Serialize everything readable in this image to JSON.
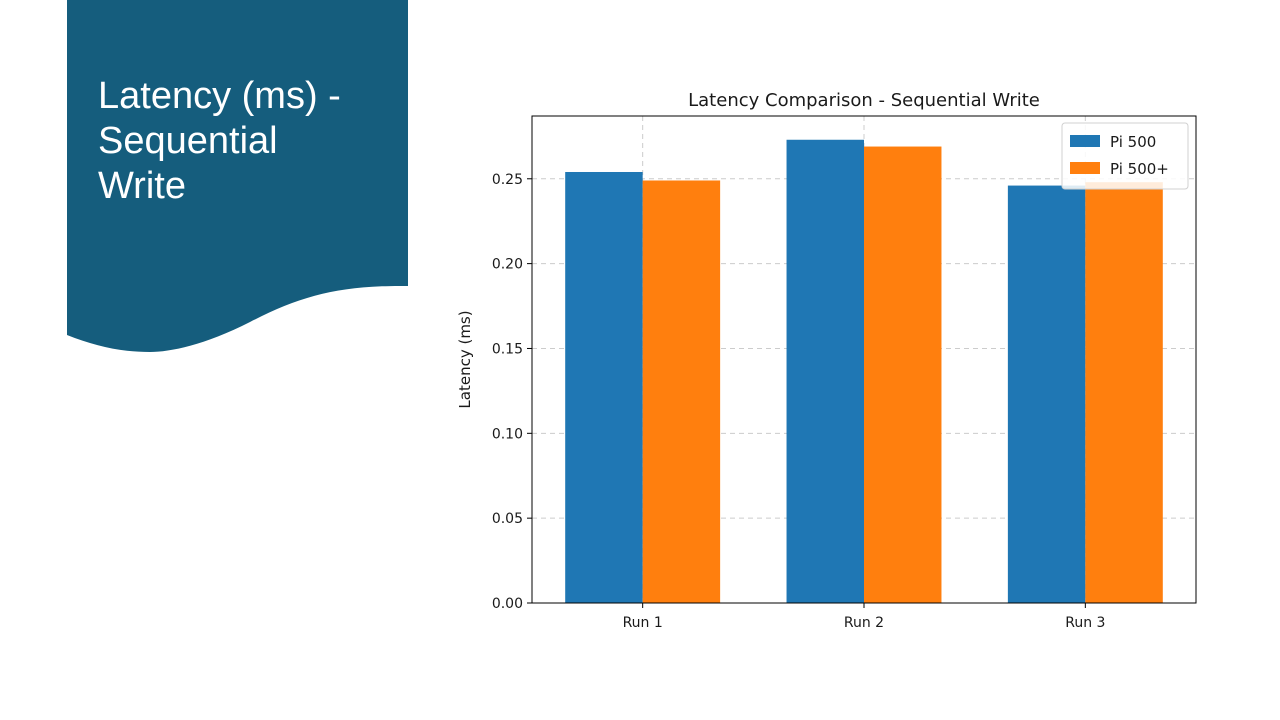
{
  "slide": {
    "title": "Latency (ms) -\n Sequential\nWrite",
    "banner_color": "#155d7d"
  },
  "chart_data": {
    "type": "bar",
    "title": "Latency Comparison - Sequential Write",
    "xlabel": "",
    "ylabel": "Latency (ms)",
    "categories": [
      "Run 1",
      "Run 2",
      "Run 3"
    ],
    "series": [
      {
        "name": "Pi 500",
        "values": [
          0.254,
          0.273,
          0.246
        ],
        "color": "#1f77b4"
      },
      {
        "name": "Pi 500+",
        "values": [
          0.249,
          0.269,
          0.248
        ],
        "color": "#ff7f0e"
      }
    ],
    "ylim": [
      0,
      0.287
    ],
    "yticks": [
      "0.00",
      "0.05",
      "0.10",
      "0.15",
      "0.20",
      "0.25"
    ],
    "grid": true,
    "legend_position": "top-right"
  }
}
